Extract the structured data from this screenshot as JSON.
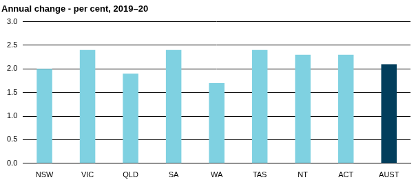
{
  "chart_data": {
    "type": "bar",
    "title": "Annual change - per cent, 2019–20",
    "categories": [
      "NSW",
      "VIC",
      "QLD",
      "SA",
      "WA",
      "TAS",
      "NT",
      "ACT",
      "AUST"
    ],
    "values": [
      2.0,
      2.4,
      1.9,
      2.4,
      1.7,
      2.4,
      2.3,
      2.3,
      2.1
    ],
    "colors": [
      "#7fd1e1",
      "#7fd1e1",
      "#7fd1e1",
      "#7fd1e1",
      "#7fd1e1",
      "#7fd1e1",
      "#7fd1e1",
      "#7fd1e1",
      "#023e5c"
    ],
    "ylim": [
      0,
      3
    ],
    "yticks": [
      {
        "value": 0,
        "label": "0.0"
      },
      0.5,
      {
        "value": 1,
        "label": "1.0"
      },
      1.5,
      {
        "value": 2,
        "label": "2.0"
      },
      2.5,
      {
        "value": 3,
        "label": "3.0"
      }
    ],
    "grid": true
  }
}
